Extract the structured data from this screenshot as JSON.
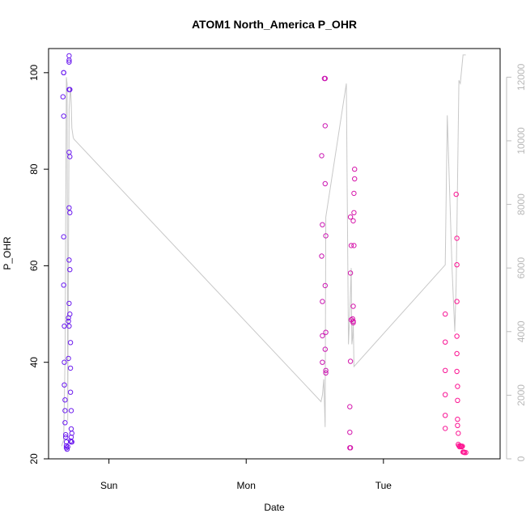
{
  "chart_data": {
    "type": "scatter",
    "title": "ATOM1 North_America P_OHR",
    "xlabel": "Date",
    "ylabel": "P_OHR",
    "ylim": [
      20,
      105
    ],
    "yticks": [
      20,
      40,
      60,
      80,
      100
    ],
    "y2lim": [
      0,
      12900
    ],
    "y2ticks": [
      0,
      2000,
      4000,
      6000,
      8000,
      10000,
      12000
    ],
    "xlim": [
      -0.44,
      2.85
    ],
    "xticks": [
      {
        "label": "Sun",
        "value": 0
      },
      {
        "label": "Mon",
        "value": 1
      },
      {
        "label": "Tue",
        "value": 2
      }
    ],
    "x_unit": "days",
    "grid": false,
    "point_color_gradient": [
      "#6a1cf0",
      "#ff1490"
    ],
    "line_color": "#c8c8c8",
    "points": [
      [
        -0.33,
        100
      ],
      [
        -0.33,
        100
      ],
      [
        -0.335,
        95
      ],
      [
        -0.33,
        91
      ],
      [
        -0.33,
        66
      ],
      [
        -0.33,
        56
      ],
      [
        -0.325,
        47.5
      ],
      [
        -0.325,
        40
      ],
      [
        -0.325,
        35.3
      ],
      [
        -0.32,
        32.2
      ],
      [
        -0.32,
        30
      ],
      [
        -0.32,
        27.5
      ],
      [
        -0.315,
        25
      ],
      [
        -0.315,
        24.5
      ],
      [
        -0.31,
        23.5
      ],
      [
        -0.31,
        22.7
      ],
      [
        -0.31,
        22.3
      ],
      [
        -0.305,
        22
      ],
      [
        -0.3,
        22.5
      ],
      [
        -0.29,
        103.5
      ],
      [
        -0.29,
        102.6
      ],
      [
        -0.29,
        102.2
      ],
      [
        -0.29,
        96.5
      ],
      [
        -0.285,
        96.5
      ],
      [
        -0.29,
        83.5
      ],
      [
        -0.285,
        82.6
      ],
      [
        -0.29,
        72
      ],
      [
        -0.285,
        71
      ],
      [
        -0.29,
        61.2
      ],
      [
        -0.285,
        59.2
      ],
      [
        -0.29,
        52.2
      ],
      [
        -0.295,
        49.2
      ],
      [
        -0.295,
        48.5
      ],
      [
        -0.29,
        47.5
      ],
      [
        -0.285,
        50
      ],
      [
        -0.28,
        44.1
      ],
      [
        -0.295,
        40.8
      ],
      [
        -0.28,
        38.8
      ],
      [
        -0.28,
        33.8
      ],
      [
        -0.275,
        30
      ],
      [
        -0.275,
        26.2
      ],
      [
        -0.27,
        25.3
      ],
      [
        -0.275,
        24.5
      ],
      [
        -0.275,
        23.5
      ],
      [
        -0.27,
        23.5
      ],
      [
        -0.28,
        23.7
      ],
      [
        1.55,
        82.8
      ],
      [
        1.57,
        98.8
      ],
      [
        1.575,
        98.8
      ],
      [
        1.575,
        89
      ],
      [
        1.575,
        77
      ],
      [
        1.555,
        68.5
      ],
      [
        1.58,
        66.2
      ],
      [
        1.55,
        62
      ],
      [
        1.575,
        55.9
      ],
      [
        1.555,
        52.6
      ],
      [
        1.555,
        45.5
      ],
      [
        1.58,
        46.2
      ],
      [
        1.575,
        42.7
      ],
      [
        1.555,
        40
      ],
      [
        1.58,
        38.3
      ],
      [
        1.58,
        37.8
      ],
      [
        1.76,
        70.1
      ],
      [
        1.785,
        71
      ],
      [
        1.79,
        80
      ],
      [
        1.79,
        78
      ],
      [
        1.785,
        75
      ],
      [
        1.78,
        69.3
      ],
      [
        1.765,
        64.2
      ],
      [
        1.785,
        64.2
      ],
      [
        1.76,
        58.5
      ],
      [
        1.78,
        51.6
      ],
      [
        1.765,
        48.8
      ],
      [
        1.775,
        49
      ],
      [
        1.78,
        48.5
      ],
      [
        1.78,
        48.2
      ],
      [
        1.76,
        40.2
      ],
      [
        1.755,
        30.8
      ],
      [
        1.755,
        25.5
      ],
      [
        1.755,
        22.3
      ],
      [
        1.76,
        22.3
      ],
      [
        2.45,
        50
      ],
      [
        2.45,
        44.2
      ],
      [
        2.45,
        38.3
      ],
      [
        2.45,
        33.3
      ],
      [
        2.45,
        29
      ],
      [
        2.45,
        26.3
      ],
      [
        2.53,
        74.8
      ],
      [
        2.535,
        65.7
      ],
      [
        2.535,
        60.2
      ],
      [
        2.535,
        52.6
      ],
      [
        2.535,
        45.4
      ],
      [
        2.535,
        41.8
      ],
      [
        2.535,
        38.1
      ],
      [
        2.54,
        35
      ],
      [
        2.54,
        32.1
      ],
      [
        2.54,
        28.2
      ],
      [
        2.54,
        26.9
      ],
      [
        2.545,
        25.3
      ],
      [
        2.545,
        23
      ],
      [
        2.55,
        22.7
      ],
      [
        2.555,
        22.5
      ],
      [
        2.56,
        22.7
      ],
      [
        2.565,
        22.6
      ],
      [
        2.57,
        22.5
      ],
      [
        2.575,
        22.6
      ],
      [
        2.58,
        21.4
      ],
      [
        2.585,
        21.4
      ],
      [
        2.59,
        21.3
      ],
      [
        2.6,
        21.3
      ]
    ],
    "line": [
      [
        -0.345,
        400
      ],
      [
        -0.33,
        600
      ],
      [
        -0.32,
        3200
      ],
      [
        -0.31,
        12000
      ],
      [
        -0.305,
        11800
      ],
      [
        -0.3,
        1200
      ],
      [
        -0.29,
        11000
      ],
      [
        -0.28,
        11700
      ],
      [
        -0.275,
        11200
      ],
      [
        -0.27,
        10400
      ],
      [
        -0.26,
        10100
      ],
      [
        -0.255,
        10050
      ],
      [
        1.545,
        1800
      ],
      [
        1.555,
        2000
      ],
      [
        1.565,
        2500
      ],
      [
        1.575,
        1000
      ],
      [
        1.58,
        7600
      ],
      [
        1.73,
        11800
      ],
      [
        1.745,
        3600
      ],
      [
        1.755,
        4600
      ],
      [
        1.765,
        6000
      ],
      [
        1.77,
        3600
      ],
      [
        1.775,
        3800
      ],
      [
        1.78,
        4400
      ],
      [
        1.785,
        2900
      ],
      [
        2.45,
        6100
      ],
      [
        2.465,
        10800
      ],
      [
        2.5,
        6000
      ],
      [
        2.52,
        4000
      ],
      [
        2.53,
        5500
      ],
      [
        2.55,
        11900
      ],
      [
        2.56,
        11800
      ],
      [
        2.58,
        12700
      ],
      [
        2.6,
        12700
      ]
    ]
  }
}
